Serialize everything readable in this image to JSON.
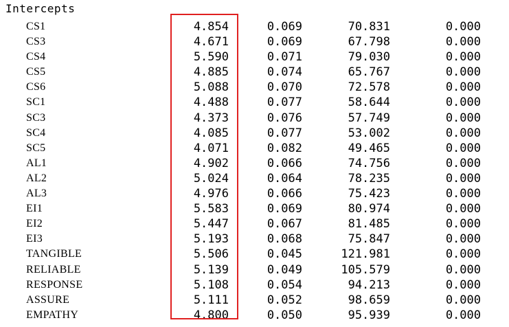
{
  "heading": "Intercepts",
  "highlight_color": "#e02020",
  "rows": [
    {
      "name": "CS1",
      "estimate": "4.854",
      "se": "0.069",
      "cr": "70.831",
      "p": "0.000"
    },
    {
      "name": "CS3",
      "estimate": "4.671",
      "se": "0.069",
      "cr": "67.798",
      "p": "0.000"
    },
    {
      "name": "CS4",
      "estimate": "5.590",
      "se": "0.071",
      "cr": "79.030",
      "p": "0.000"
    },
    {
      "name": "CS5",
      "estimate": "4.885",
      "se": "0.074",
      "cr": "65.767",
      "p": "0.000"
    },
    {
      "name": "CS6",
      "estimate": "5.088",
      "se": "0.070",
      "cr": "72.578",
      "p": "0.000"
    },
    {
      "name": "SC1",
      "estimate": "4.488",
      "se": "0.077",
      "cr": "58.644",
      "p": "0.000"
    },
    {
      "name": "SC3",
      "estimate": "4.373",
      "se": "0.076",
      "cr": "57.749",
      "p": "0.000"
    },
    {
      "name": "SC4",
      "estimate": "4.085",
      "se": "0.077",
      "cr": "53.002",
      "p": "0.000"
    },
    {
      "name": "SC5",
      "estimate": "4.071",
      "se": "0.082",
      "cr": "49.465",
      "p": "0.000"
    },
    {
      "name": "AL1",
      "estimate": "4.902",
      "se": "0.066",
      "cr": "74.756",
      "p": "0.000"
    },
    {
      "name": "AL2",
      "estimate": "5.024",
      "se": "0.064",
      "cr": "78.235",
      "p": "0.000"
    },
    {
      "name": "AL3",
      "estimate": "4.976",
      "se": "0.066",
      "cr": "75.423",
      "p": "0.000"
    },
    {
      "name": "EI1",
      "estimate": "5.583",
      "se": "0.069",
      "cr": "80.974",
      "p": "0.000"
    },
    {
      "name": "EI2",
      "estimate": "5.447",
      "se": "0.067",
      "cr": "81.485",
      "p": "0.000"
    },
    {
      "name": "EI3",
      "estimate": "5.193",
      "se": "0.068",
      "cr": "75.847",
      "p": "0.000"
    },
    {
      "name": "TANGIBLE",
      "estimate": "5.506",
      "se": "0.045",
      "cr": "121.981",
      "p": "0.000"
    },
    {
      "name": "RELIABLE",
      "estimate": "5.139",
      "se": "0.049",
      "cr": "105.579",
      "p": "0.000"
    },
    {
      "name": "RESPONSE",
      "estimate": "5.108",
      "se": "0.054",
      "cr": "94.213",
      "p": "0.000"
    },
    {
      "name": "ASSURE",
      "estimate": "5.111",
      "se": "0.052",
      "cr": "98.659",
      "p": "0.000"
    },
    {
      "name": "EMPATHY",
      "estimate": "4.800",
      "se": "0.050",
      "cr": "95.939",
      "p": "0.000"
    }
  ]
}
